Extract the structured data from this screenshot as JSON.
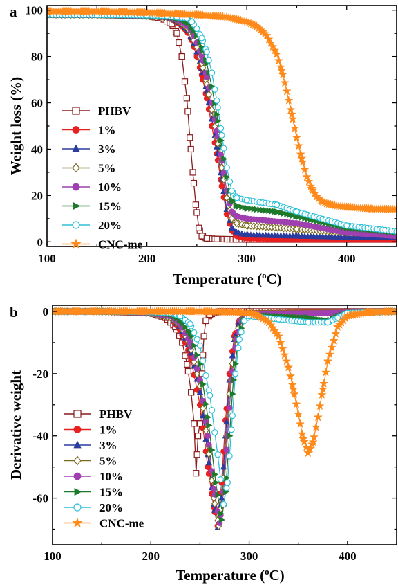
{
  "colors": {
    "PHBV": "#8b1a1a",
    "1%": "#e82020",
    "3%": "#2a3c9e",
    "5%": "#7a6a20",
    "10%": "#a040b0",
    "15%": "#1e7a2a",
    "20%": "#2ec0d8",
    "CNC-me": "#ff8a1a"
  },
  "markers": {
    "PHBV": "square-open",
    "1%": "circle-filled",
    "3%": "triangle-up-filled",
    "5%": "diamond-open",
    "10%": "circle-filled",
    "15%": "triangle-right-filled",
    "20%": "circle-open",
    "CNC-me": "star"
  },
  "chart_data": [
    {
      "type": "line",
      "panel_label": "a",
      "xlabel_main": "Temperature (",
      "xlabel_sup": "o",
      "xlabel_unit": "C)",
      "ylabel": "Weight loss (%)",
      "xlim": [
        100,
        450
      ],
      "ylim": [
        -2,
        102
      ],
      "xticks": [
        100,
        200,
        300,
        400
      ],
      "yticks": [
        0,
        20,
        40,
        60,
        80,
        100
      ],
      "grid": false,
      "legend_position": "bottom-left",
      "series": [
        {
          "name": "PHBV",
          "x": [
            100,
            150,
            200,
            215,
            225,
            230,
            235,
            240,
            243,
            246,
            249,
            252,
            255,
            260,
            270,
            300,
            350,
            400,
            450
          ],
          "y": [
            98,
            98,
            97.5,
            96.5,
            94,
            90,
            80,
            62,
            45,
            30,
            16,
            6,
            2.5,
            1.5,
            1.2,
            1,
            1,
            1,
            1
          ]
        },
        {
          "name": "1%",
          "x": [
            100,
            150,
            200,
            220,
            230,
            240,
            245,
            250,
            255,
            260,
            265,
            270,
            275,
            280,
            285,
            290,
            300,
            350,
            400,
            450
          ],
          "y": [
            98,
            98,
            97.5,
            97,
            95,
            91,
            87,
            80,
            72,
            62,
            50,
            38,
            24,
            12,
            5,
            2.5,
            1.5,
            1,
            1,
            1
          ]
        },
        {
          "name": "3%",
          "x": [
            100,
            150,
            200,
            220,
            230,
            240,
            245,
            250,
            255,
            260,
            265,
            270,
            275,
            280,
            285,
            290,
            300,
            350,
            400,
            450
          ],
          "y": [
            98,
            98,
            97.5,
            97,
            95.5,
            92,
            88,
            82,
            75,
            65,
            53,
            41,
            27,
            14,
            6,
            4,
            3,
            2.5,
            2,
            2
          ]
        },
        {
          "name": "5%",
          "x": [
            100,
            150,
            200,
            220,
            230,
            240,
            245,
            250,
            255,
            260,
            265,
            270,
            275,
            280,
            285,
            290,
            300,
            350,
            400,
            450
          ],
          "y": [
            98,
            98,
            97.5,
            97,
            95.8,
            92.5,
            89,
            84,
            77,
            68,
            57,
            45,
            32,
            19,
            10,
            8,
            7,
            5.5,
            4,
            3.5
          ]
        },
        {
          "name": "10%",
          "x": [
            100,
            150,
            200,
            220,
            230,
            240,
            245,
            250,
            255,
            260,
            265,
            270,
            275,
            280,
            285,
            290,
            300,
            350,
            400,
            450
          ],
          "y": [
            98,
            98,
            97.5,
            97,
            96,
            93.5,
            91,
            86,
            80,
            71,
            60,
            48,
            35,
            22,
            13,
            11,
            10,
            8,
            4,
            2.5
          ]
        },
        {
          "name": "15%",
          "x": [
            100,
            150,
            200,
            220,
            230,
            240,
            245,
            250,
            255,
            260,
            265,
            270,
            275,
            280,
            285,
            290,
            300,
            330,
            350,
            400,
            450
          ],
          "y": [
            98,
            98,
            97.5,
            97,
            96.5,
            95,
            92.5,
            89,
            84,
            77,
            67,
            55,
            41,
            28,
            18,
            15.5,
            14.5,
            13,
            11,
            6,
            4
          ]
        },
        {
          "name": "20%",
          "x": [
            100,
            150,
            200,
            220,
            230,
            240,
            245,
            250,
            255,
            260,
            265,
            270,
            275,
            280,
            285,
            290,
            300,
            330,
            350,
            400,
            450
          ],
          "y": [
            98,
            98,
            97.8,
            97.5,
            97,
            96.5,
            95,
            92,
            88,
            82,
            73,
            61,
            46,
            32,
            22,
            19,
            18,
            16,
            13,
            7,
            4.5
          ]
        },
        {
          "name": "CNC-me",
          "x": [
            100,
            150,
            200,
            250,
            280,
            300,
            310,
            320,
            330,
            335,
            340,
            345,
            350,
            355,
            360,
            365,
            370,
            375,
            380,
            390,
            400,
            425,
            450
          ],
          "y": [
            99.5,
            99.5,
            99,
            98,
            97,
            95,
            93,
            89,
            81,
            74,
            65,
            55,
            45,
            36,
            28,
            23,
            19.5,
            17.5,
            16.5,
            15.5,
            15,
            14.2,
            14
          ]
        }
      ]
    },
    {
      "type": "line",
      "panel_label": "b",
      "xlabel_main": "Temperature (",
      "xlabel_sup": "o",
      "xlabel_unit": "C)",
      "ylabel": "Derivative weight",
      "xlim": [
        100,
        450
      ],
      "ylim": [
        -75,
        2
      ],
      "xticks": [
        100,
        200,
        300,
        400
      ],
      "yticks": [
        0,
        -20,
        -40,
        -60
      ],
      "grid": false,
      "legend_position": "bottom-left",
      "series": [
        {
          "name": "PHBV",
          "x": [
            100,
            150,
            200,
            215,
            225,
            232,
            237,
            241,
            244,
            246,
            248,
            250,
            252,
            254,
            256,
            260,
            270,
            300,
            400,
            450
          ],
          "y": [
            0,
            0,
            -0.5,
            -2,
            -5,
            -10,
            -17,
            -26,
            -36,
            -52,
            -40,
            -36,
            -20,
            -8,
            -3,
            -1,
            0,
            0,
            0,
            0
          ]
        },
        {
          "name": "1%",
          "x": [
            100,
            150,
            200,
            220,
            230,
            240,
            250,
            258,
            264,
            268,
            272,
            276,
            280,
            285,
            290,
            300,
            400,
            450
          ],
          "y": [
            0,
            0,
            -0.5,
            -2,
            -6,
            -14,
            -30,
            -50,
            -63,
            -69,
            -55,
            -35,
            -20,
            -8,
            -3,
            -0.5,
            0,
            0
          ]
        },
        {
          "name": "3%",
          "x": [
            100,
            150,
            200,
            220,
            230,
            240,
            250,
            258,
            264,
            268,
            272,
            276,
            280,
            285,
            290,
            300,
            400,
            450
          ],
          "y": [
            0,
            0,
            -0.5,
            -2,
            -5,
            -12,
            -26,
            -46,
            -62,
            -69.5,
            -60,
            -40,
            -22,
            -9,
            -3,
            -0.5,
            0,
            0
          ]
        },
        {
          "name": "5%",
          "x": [
            100,
            150,
            200,
            220,
            230,
            240,
            250,
            258,
            264,
            269,
            273,
            277,
            281,
            286,
            291,
            300,
            400,
            450
          ],
          "y": [
            0,
            0,
            -0.5,
            -2,
            -4.5,
            -11,
            -24,
            -43,
            -60,
            -69,
            -58,
            -40,
            -22,
            -9,
            -3,
            -0.6,
            -0.3,
            0
          ]
        },
        {
          "name": "10%",
          "x": [
            100,
            150,
            200,
            220,
            230,
            240,
            250,
            258,
            264,
            270,
            274,
            278,
            282,
            287,
            292,
            300,
            380,
            450
          ],
          "y": [
            0,
            0,
            -0.5,
            -1.5,
            -4,
            -10,
            -22,
            -40,
            -57,
            -68,
            -58,
            -40,
            -22,
            -9,
            -3,
            -0.8,
            -0.5,
            0
          ]
        },
        {
          "name": "15%",
          "x": [
            100,
            150,
            200,
            220,
            230,
            240,
            250,
            258,
            266,
            272,
            276,
            280,
            284,
            289,
            294,
            300,
            360,
            380,
            390,
            400,
            450
          ],
          "y": [
            0,
            0,
            -0.3,
            -1,
            -3,
            -7,
            -17,
            -34,
            -55,
            -67,
            -58,
            -40,
            -22,
            -9,
            -3,
            -1,
            -2,
            -3,
            -1.5,
            -0.5,
            0
          ]
        },
        {
          "name": "20%",
          "x": [
            100,
            150,
            200,
            220,
            230,
            240,
            250,
            260,
            268,
            274,
            278,
            282,
            286,
            290,
            295,
            300,
            330,
            360,
            380,
            390,
            400,
            450
          ],
          "y": [
            0,
            0,
            -0.2,
            -0.5,
            -1.5,
            -4,
            -11,
            -27,
            -46,
            -62,
            -55,
            -38,
            -20,
            -9,
            -3,
            -1.5,
            -2.5,
            -3.5,
            -3.5,
            -2,
            -0.5,
            0
          ]
        },
        {
          "name": "CNC-me",
          "x": [
            100,
            150,
            200,
            250,
            280,
            300,
            310,
            320,
            330,
            340,
            345,
            350,
            355,
            360,
            365,
            370,
            375,
            380,
            390,
            400,
            420,
            450
          ],
          "y": [
            0,
            0,
            0,
            0,
            -0.2,
            -0.5,
            -1.5,
            -3.5,
            -8,
            -18,
            -25,
            -33,
            -41,
            -45.5,
            -42,
            -34,
            -25,
            -16,
            -5,
            -1.5,
            -0.3,
            0
          ]
        }
      ]
    }
  ]
}
